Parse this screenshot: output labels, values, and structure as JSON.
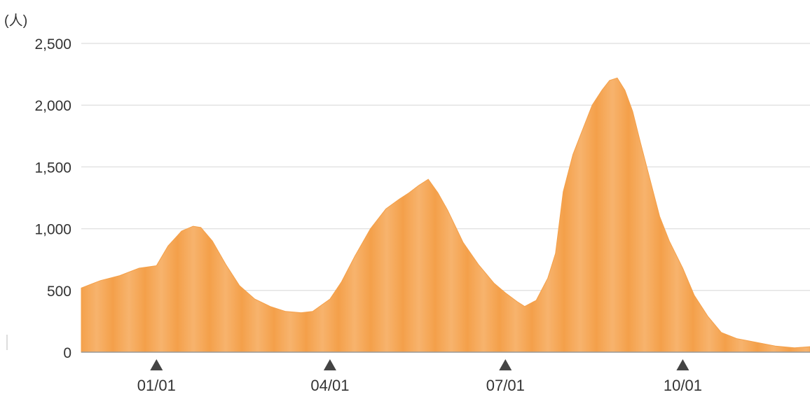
{
  "chart_data": {
    "type": "area",
    "unit_label": "(人)",
    "ylim": [
      0,
      2500
    ],
    "y_ticks": [
      "0",
      "500",
      "1,000",
      "1,500",
      "2,000",
      "2,500"
    ],
    "y_tick_values": [
      0,
      500,
      1000,
      1500,
      2000,
      2500
    ],
    "x_ticks": [
      "01/01",
      "04/01",
      "07/01",
      "10/01"
    ],
    "x_tick_day_index": [
      39,
      129,
      220,
      312
    ],
    "grid": true,
    "fill_color": "#f4a04a",
    "fill_color_light": "#f7b36d",
    "baseline_color": "#999999",
    "marker_color": "#444444",
    "series": [
      {
        "x_day_index": [
          0,
          10,
          20,
          30,
          39,
          45,
          52,
          58,
          62,
          68,
          75,
          82,
          90,
          98,
          106,
          114,
          120,
          129,
          135,
          142,
          150,
          158,
          165,
          170,
          175,
          180,
          185,
          190,
          198,
          206,
          214,
          220,
          226,
          230,
          236,
          242,
          246,
          250,
          255,
          260,
          265,
          270,
          274,
          278,
          282,
          286,
          290,
          295,
          300,
          305,
          312,
          318,
          325,
          332,
          340,
          350,
          360,
          370,
          378
        ],
        "values": [
          520,
          580,
          620,
          680,
          700,
          860,
          980,
          1020,
          1010,
          900,
          710,
          540,
          430,
          370,
          330,
          320,
          330,
          430,
          570,
          780,
          1000,
          1160,
          1240,
          1290,
          1350,
          1400,
          1290,
          1150,
          890,
          710,
          560,
          480,
          410,
          370,
          420,
          600,
          800,
          1300,
          1600,
          1800,
          2000,
          2120,
          2200,
          2220,
          2120,
          1950,
          1700,
          1400,
          1100,
          900,
          680,
          460,
          290,
          160,
          110,
          80,
          50,
          35,
          45
        ]
      }
    ]
  }
}
